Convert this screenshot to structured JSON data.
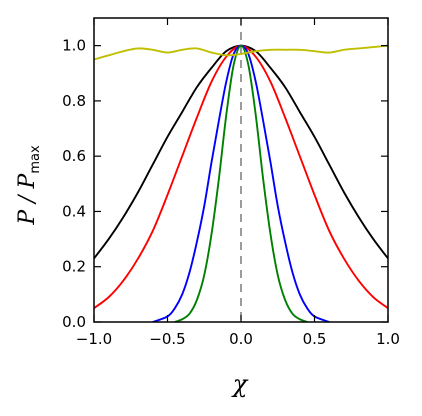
{
  "chart_data": {
    "type": "line",
    "xlabel": "χ",
    "ylabel": {
      "main": "P / P",
      "sub": "max"
    },
    "xlim": [
      -1.0,
      1.0
    ],
    "ylim": [
      0.0,
      1.1
    ],
    "xticks": [
      -1.0,
      -0.5,
      0.0,
      0.5,
      1.0
    ],
    "xtick_labels": [
      "−1.0",
      "−0.5",
      "0.0",
      "0.5",
      "1.0"
    ],
    "yticks": [
      0.0,
      0.2,
      0.4,
      0.6,
      0.8,
      1.0
    ],
    "ytick_labels": [
      "0.0",
      "0.2",
      "0.4",
      "0.6",
      "0.8",
      "1.0"
    ],
    "grid": false,
    "reference_line": {
      "x": 0.0,
      "style": "dashed",
      "color": "#666666"
    },
    "series": [
      {
        "color": "#000000",
        "x": [
          -1.0,
          -0.9,
          -0.8,
          -0.7,
          -0.6,
          -0.5,
          -0.4,
          -0.3,
          -0.2,
          -0.1,
          0.0,
          0.1,
          0.2,
          0.3,
          0.4,
          0.5,
          0.6,
          0.7,
          0.8,
          0.9,
          1.0
        ],
        "y": [
          0.23,
          0.3,
          0.38,
          0.47,
          0.57,
          0.67,
          0.76,
          0.85,
          0.92,
          0.98,
          1.0,
          0.98,
          0.92,
          0.85,
          0.76,
          0.67,
          0.57,
          0.47,
          0.38,
          0.3,
          0.23
        ]
      },
      {
        "color": "#ff0000",
        "x": [
          -1.0,
          -0.9,
          -0.8,
          -0.7,
          -0.6,
          -0.5,
          -0.4,
          -0.3,
          -0.2,
          -0.1,
          0.0,
          0.1,
          0.2,
          0.3,
          0.4,
          0.5,
          0.6,
          0.7,
          0.8,
          0.9,
          1.0
        ],
        "y": [
          0.05,
          0.09,
          0.15,
          0.23,
          0.33,
          0.46,
          0.6,
          0.74,
          0.87,
          0.96,
          1.0,
          0.96,
          0.87,
          0.74,
          0.6,
          0.46,
          0.33,
          0.23,
          0.15,
          0.09,
          0.05
        ]
      },
      {
        "color": "#0000ff",
        "x": [
          -0.6,
          -0.5,
          -0.45,
          -0.4,
          -0.35,
          -0.3,
          -0.25,
          -0.2,
          -0.15,
          -0.1,
          -0.05,
          0.0,
          0.05,
          0.1,
          0.15,
          0.2,
          0.25,
          0.3,
          0.35,
          0.4,
          0.45,
          0.5,
          0.6
        ],
        "y": [
          0.0,
          0.02,
          0.05,
          0.1,
          0.18,
          0.29,
          0.42,
          0.58,
          0.73,
          0.87,
          0.97,
          1.0,
          0.97,
          0.87,
          0.73,
          0.58,
          0.42,
          0.29,
          0.18,
          0.1,
          0.05,
          0.02,
          0.0
        ]
      },
      {
        "color": "#008000",
        "x": [
          -0.45,
          -0.4,
          -0.35,
          -0.3,
          -0.25,
          -0.2,
          -0.15,
          -0.1,
          -0.05,
          0.0,
          0.05,
          0.1,
          0.15,
          0.2,
          0.25,
          0.3,
          0.35,
          0.4,
          0.45
        ],
        "y": [
          0.0,
          0.01,
          0.03,
          0.08,
          0.17,
          0.32,
          0.52,
          0.75,
          0.93,
          1.0,
          0.93,
          0.75,
          0.52,
          0.32,
          0.17,
          0.08,
          0.03,
          0.01,
          0.0
        ]
      },
      {
        "color": "#bfbf00",
        "x": [
          -1.0,
          -0.9,
          -0.8,
          -0.7,
          -0.6,
          -0.5,
          -0.4,
          -0.3,
          -0.2,
          -0.1,
          0.0,
          0.1,
          0.2,
          0.3,
          0.4,
          0.5,
          0.6,
          0.7,
          0.8,
          0.9,
          1.0
        ],
        "y": [
          0.95,
          0.965,
          0.98,
          0.99,
          0.985,
          0.975,
          0.985,
          0.99,
          0.975,
          0.965,
          0.97,
          0.98,
          0.985,
          0.985,
          0.985,
          0.98,
          0.975,
          0.985,
          0.99,
          0.995,
          1.0
        ]
      }
    ]
  }
}
